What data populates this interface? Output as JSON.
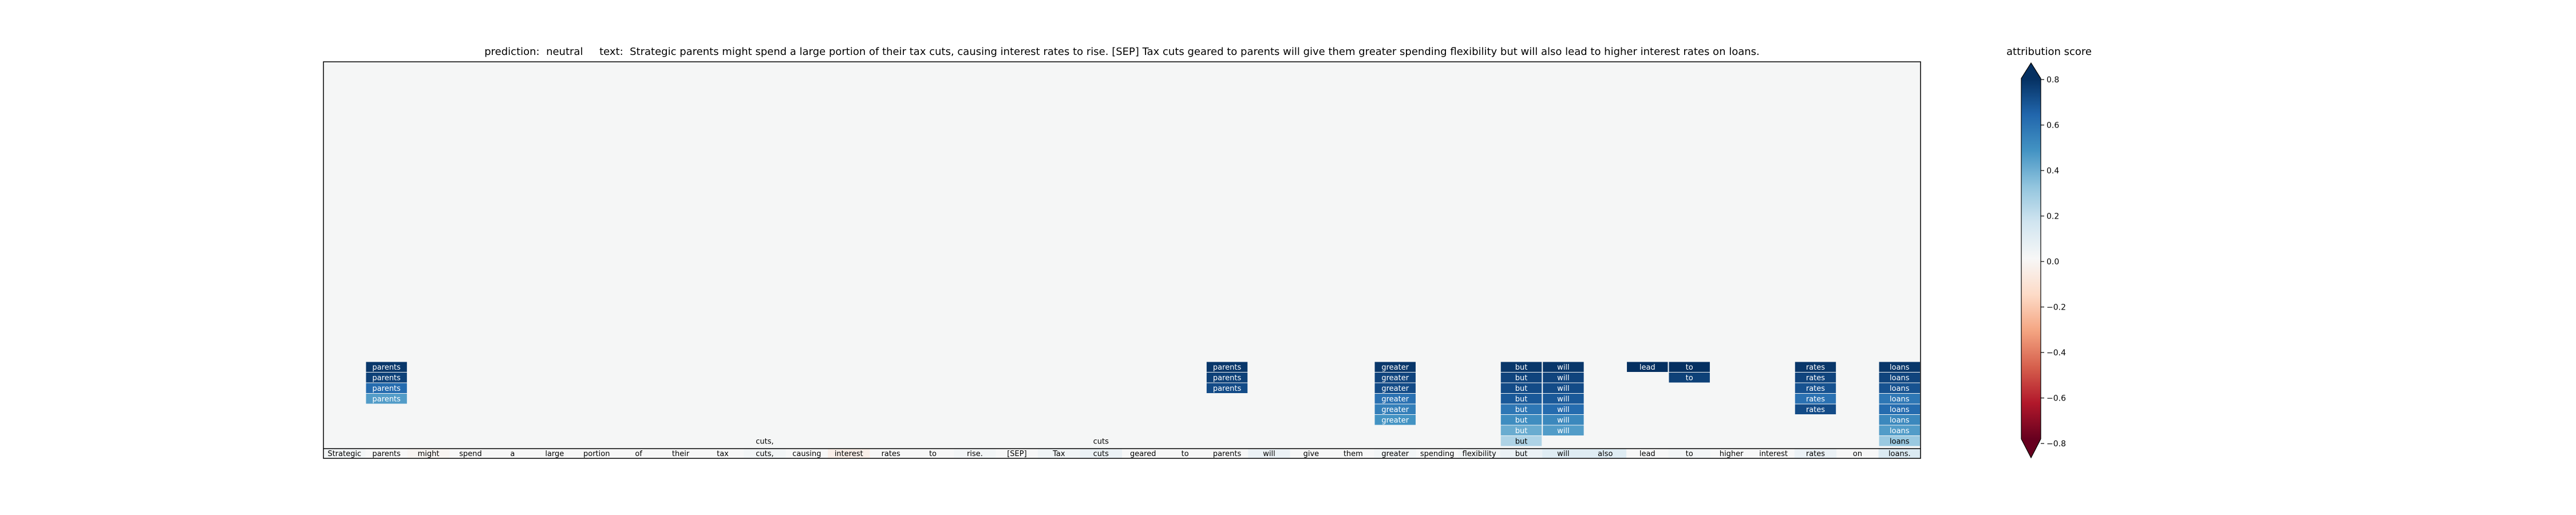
{
  "title": {
    "prediction_label": "prediction:",
    "prediction_value": "neutral",
    "text_label": "text:",
    "text_value": "Strategic parents might spend a large portion of their tax cuts, causing interest rates to rise. [SEP] Tax cuts geared to parents will give them greater spending flexibility but will also lead to higher interest rates on loans."
  },
  "colorbar": {
    "title": "attribution score",
    "ticks": [
      "0.8",
      "0.6",
      "0.4",
      "0.2",
      "0.0",
      "−0.2",
      "−0.4",
      "−0.6",
      "−0.8"
    ],
    "tick_values": [
      0.8,
      0.6,
      0.4,
      0.2,
      0.0,
      -0.2,
      -0.4,
      -0.6,
      -0.8
    ],
    "vmin": -0.8,
    "vmax": 0.8,
    "colors": [
      "#67001f",
      "#b2182b",
      "#d6604d",
      "#f4a582",
      "#fddbc7",
      "#f7f7f7",
      "#d1e5f0",
      "#92c5de",
      "#4393c3",
      "#2166ac",
      "#053061"
    ]
  },
  "chart_data": {
    "type": "heatmap",
    "title": "prediction:  neutral     text:  Strategic parents might spend a large portion of their tax cuts, causing interest rates to rise. [SEP] Tax cuts geared to parents will give them greater spending flexibility but will also lead to higher interest rates on loans.",
    "tokens": [
      "Strategic",
      "parents",
      "might",
      "spend",
      "a",
      "large",
      "portion",
      "of",
      "their",
      "tax",
      "cuts,",
      "causing",
      "interest",
      "rates",
      "to",
      "rise.",
      "[SEP]",
      "Tax",
      "cuts",
      "geared",
      "to",
      "parents",
      "will",
      "give",
      "them",
      "greater",
      "spending",
      "flexibility",
      "but",
      "will",
      "also",
      "lead",
      "to",
      "higher",
      "interest",
      "rates",
      "on",
      "loans."
    ],
    "token_scores": [
      0.02,
      0.0,
      -0.02,
      0.0,
      0.0,
      0.0,
      0.0,
      0.0,
      0.0,
      0.0,
      0.02,
      0.0,
      -0.05,
      0.0,
      0.0,
      0.02,
      0.0,
      0.03,
      0.05,
      0.0,
      0.0,
      0.0,
      0.05,
      0.0,
      0.0,
      0.02,
      0.0,
      0.02,
      0.05,
      0.1,
      0.1,
      0.0,
      0.02,
      0.0,
      0.0,
      0.05,
      0.0,
      0.12
    ],
    "highlights": [
      {
        "col": 10,
        "row": 0,
        "text": "cuts,",
        "score": 0.0
      },
      {
        "col": 18,
        "row": 0,
        "text": "cuts",
        "score": 0.0
      },
      {
        "col": 1,
        "row": 7,
        "text": "parents",
        "score": 0.78
      },
      {
        "col": 1,
        "row": 6,
        "text": "parents",
        "score": 0.75
      },
      {
        "col": 1,
        "row": 5,
        "text": "parents",
        "score": 0.62
      },
      {
        "col": 1,
        "row": 4,
        "text": "parents",
        "score": 0.45
      },
      {
        "col": 21,
        "row": 7,
        "text": "parents",
        "score": 0.78
      },
      {
        "col": 21,
        "row": 6,
        "text": "parents",
        "score": 0.75
      },
      {
        "col": 21,
        "row": 5,
        "text": "parents",
        "score": 0.72
      },
      {
        "col": 25,
        "row": 7,
        "text": "greater",
        "score": 0.78
      },
      {
        "col": 25,
        "row": 6,
        "text": "greater",
        "score": 0.74
      },
      {
        "col": 25,
        "row": 5,
        "text": "greater",
        "score": 0.72
      },
      {
        "col": 25,
        "row": 4,
        "text": "greater",
        "score": 0.6
      },
      {
        "col": 25,
        "row": 3,
        "text": "greater",
        "score": 0.55
      },
      {
        "col": 25,
        "row": 2,
        "text": "greater",
        "score": 0.48
      },
      {
        "col": 28,
        "row": 7,
        "text": "but",
        "score": 0.78
      },
      {
        "col": 28,
        "row": 6,
        "text": "but",
        "score": 0.74
      },
      {
        "col": 28,
        "row": 5,
        "text": "but",
        "score": 0.72
      },
      {
        "col": 28,
        "row": 4,
        "text": "but",
        "score": 0.68
      },
      {
        "col": 28,
        "row": 3,
        "text": "but",
        "score": 0.58
      },
      {
        "col": 28,
        "row": 2,
        "text": "but",
        "score": 0.5
      },
      {
        "col": 28,
        "row": 1,
        "text": "but",
        "score": 0.4
      },
      {
        "col": 28,
        "row": 0,
        "text": "but",
        "score": 0.25
      },
      {
        "col": 29,
        "row": 7,
        "text": "will",
        "score": 0.78
      },
      {
        "col": 29,
        "row": 6,
        "text": "will",
        "score": 0.74
      },
      {
        "col": 29,
        "row": 5,
        "text": "will",
        "score": 0.72
      },
      {
        "col": 29,
        "row": 4,
        "text": "will",
        "score": 0.68
      },
      {
        "col": 29,
        "row": 3,
        "text": "will",
        "score": 0.62
      },
      {
        "col": 29,
        "row": 2,
        "text": "will",
        "score": 0.52
      },
      {
        "col": 29,
        "row": 1,
        "text": "will",
        "score": 0.45
      },
      {
        "col": 31,
        "row": 7,
        "text": "lead",
        "score": 0.8
      },
      {
        "col": 32,
        "row": 7,
        "text": "to",
        "score": 0.8
      },
      {
        "col": 32,
        "row": 6,
        "text": "to",
        "score": 0.75
      },
      {
        "col": 35,
        "row": 7,
        "text": "rates",
        "score": 0.78
      },
      {
        "col": 35,
        "row": 6,
        "text": "rates",
        "score": 0.74
      },
      {
        "col": 35,
        "row": 5,
        "text": "rates",
        "score": 0.7
      },
      {
        "col": 35,
        "row": 4,
        "text": "rates",
        "score": 0.6
      },
      {
        "col": 35,
        "row": 3,
        "text": "rates",
        "score": 0.72
      },
      {
        "col": 37,
        "row": 7,
        "text": "loans",
        "score": 0.78
      },
      {
        "col": 37,
        "row": 6,
        "text": "loans",
        "score": 0.74
      },
      {
        "col": 37,
        "row": 5,
        "text": "loans",
        "score": 0.7
      },
      {
        "col": 37,
        "row": 4,
        "text": "loans",
        "score": 0.58
      },
      {
        "col": 37,
        "row": 3,
        "text": "loans",
        "score": 0.62
      },
      {
        "col": 37,
        "row": 2,
        "text": "loans",
        "score": 0.52
      },
      {
        "col": 37,
        "row": 1,
        "text": "loans",
        "score": 0.45
      },
      {
        "col": 37,
        "row": 0,
        "text": "loans",
        "score": 0.3
      }
    ],
    "cmap": "RdBu",
    "vmin": -0.8,
    "vmax": 0.8,
    "colorbar_label": "attribution score"
  }
}
